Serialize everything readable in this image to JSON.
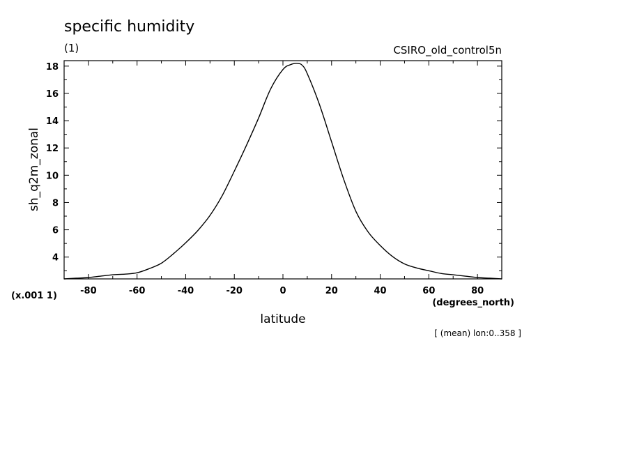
{
  "chart_data": {
    "type": "line",
    "title": "specific humidity",
    "subtitle": "(1)",
    "dataset_label": "CSIRO_old_control5n",
    "xlabel": "latitude",
    "xunits": "(degrees_north)",
    "ylabel": "sh_q2m_zonal",
    "yscale_label": "(x.001 1)",
    "footnote": "[ (mean) lon:0..358 ]",
    "xlim": [
      -90,
      90
    ],
    "ylim": [
      2.4,
      18.4
    ],
    "x_ticks": [
      -80,
      -60,
      -40,
      -20,
      0,
      20,
      40,
      60,
      80
    ],
    "x_tick_labels": [
      "-80",
      "-60",
      "-40",
      "-20",
      "0",
      "20",
      "40",
      "60",
      "80"
    ],
    "y_ticks": [
      4,
      6,
      8,
      10,
      12,
      14,
      16,
      18
    ],
    "y_tick_labels": [
      "4",
      "6",
      "8",
      "10",
      "12",
      "14",
      "16",
      "18"
    ],
    "grid": false,
    "series": [
      {
        "x": [
          -90,
          -85,
          -80,
          -75,
          -70,
          -65,
          -60,
          -55,
          -50,
          -45,
          -40,
          -35,
          -30,
          -25,
          -20,
          -15,
          -10,
          -5,
          0,
          3,
          6,
          8,
          10,
          15,
          20,
          25,
          30,
          35,
          40,
          45,
          50,
          55,
          60,
          65,
          70,
          75,
          80,
          85,
          90
        ],
        "values": [
          2.4,
          2.45,
          2.5,
          2.6,
          2.7,
          2.75,
          2.85,
          3.15,
          3.55,
          4.25,
          5.05,
          5.95,
          7.05,
          8.5,
          10.3,
          12.2,
          14.2,
          16.35,
          17.75,
          18.1,
          18.2,
          18.05,
          17.45,
          15.2,
          12.45,
          9.7,
          7.35,
          5.85,
          4.85,
          4.05,
          3.5,
          3.2,
          3.0,
          2.8,
          2.7,
          2.6,
          2.5,
          2.45,
          2.4
        ],
        "color": "#000000"
      }
    ]
  }
}
